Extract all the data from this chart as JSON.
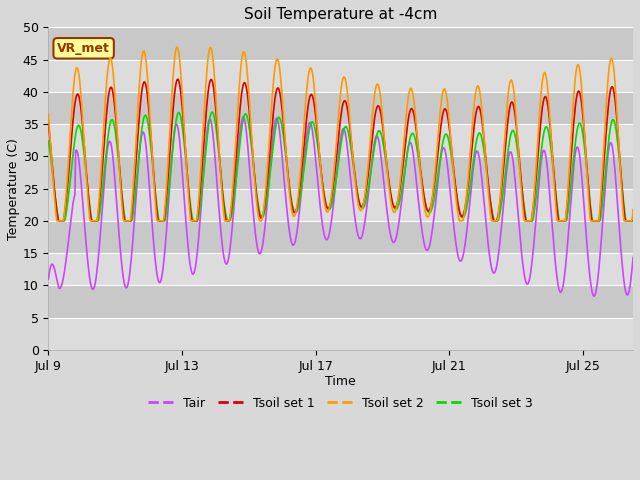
{
  "title": "Soil Temperature at -4cm",
  "xlabel": "Time",
  "ylabel": "Temperature (C)",
  "ylim": [
    0,
    50
  ],
  "xlim_days": [
    0,
    17.5
  ],
  "x_tick_labels": [
    "Jul 9",
    "Jul 13",
    "Jul 17",
    "Jul 21",
    "Jul 25"
  ],
  "x_tick_positions": [
    0,
    4,
    8,
    12,
    16
  ],
  "colors": {
    "Tair": "#cc44ff",
    "Tsoil1": "#dd0000",
    "Tsoil2": "#ff9900",
    "Tsoil3": "#00dd00"
  },
  "legend_label": "VR_met",
  "legend_bg": "#ffff99",
  "legend_border": "#993300",
  "fig_bg": "#d8d8d8",
  "plot_bg": "#d0d0d0",
  "band_colors": [
    "#c8c8c8",
    "#e0e0e0"
  ],
  "line_width": 1.2,
  "series_labels": [
    "Tair",
    "Tsoil set 1",
    "Tsoil set 2",
    "Tsoil set 3"
  ]
}
